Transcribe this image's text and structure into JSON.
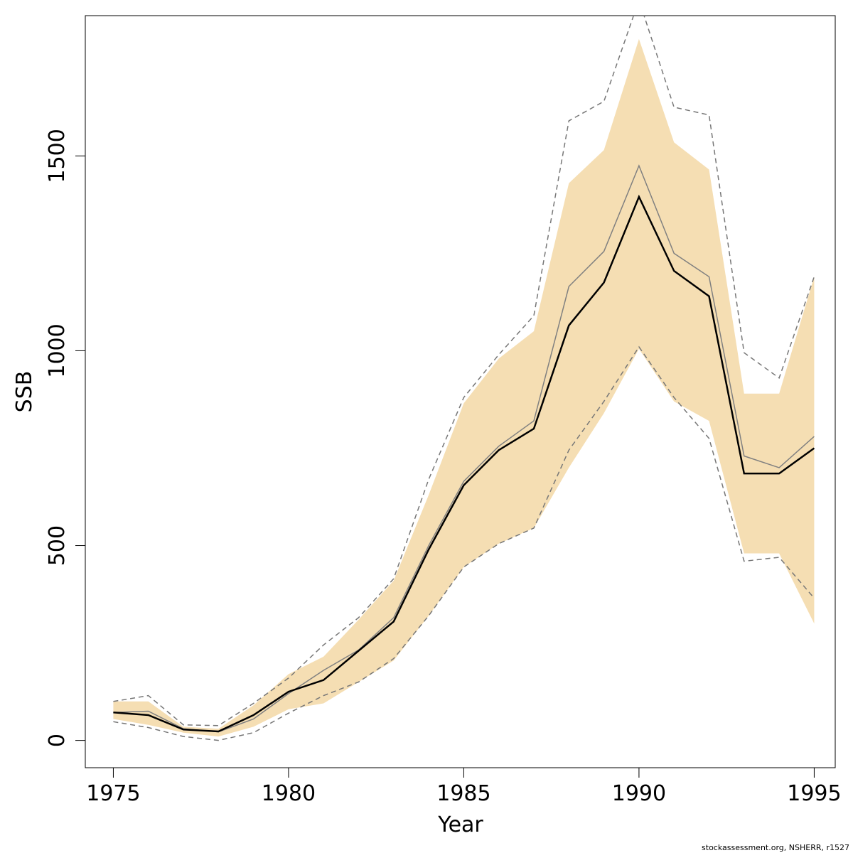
{
  "chart_data": {
    "type": "line",
    "xlabel": "Year",
    "ylabel": "SSB",
    "xlim": [
      1974.2,
      1995.6
    ],
    "ylim": [
      -70,
      1860
    ],
    "x_ticks": [
      1975,
      1980,
      1985,
      1990,
      1995
    ],
    "y_ticks": [
      0,
      500,
      1000,
      1500
    ],
    "x": [
      1975,
      1976,
      1977,
      1978,
      1979,
      1980,
      1981,
      1982,
      1983,
      1984,
      1985,
      1986,
      1987,
      1988,
      1989,
      1990,
      1991,
      1992,
      1993,
      1994,
      1995
    ],
    "series": [
      {
        "role": "band",
        "color": "#f5deb3",
        "lower": [
          55,
          40,
          20,
          10,
          35,
          80,
          95,
          150,
          205,
          320,
          445,
          505,
          545,
          700,
          840,
          1005,
          870,
          820,
          480,
          480,
          300
        ],
        "upper": [
          100,
          100,
          35,
          30,
          90,
          170,
          215,
          310,
          410,
          630,
          865,
          980,
          1050,
          1430,
          1515,
          1800,
          1535,
          1465,
          890,
          890,
          1190
        ]
      },
      {
        "role": "dashed-upper",
        "color": "#777777",
        "values": [
          100,
          115,
          40,
          38,
          95,
          160,
          245,
          315,
          415,
          670,
          880,
          990,
          1090,
          1590,
          1640,
          1900,
          1625,
          1605,
          995,
          930,
          1190
        ]
      },
      {
        "role": "dashed-lower",
        "color": "#777777",
        "values": [
          48,
          33,
          10,
          0,
          20,
          70,
          115,
          150,
          210,
          320,
          445,
          505,
          545,
          745,
          870,
          1010,
          880,
          775,
          460,
          470,
          365
        ]
      },
      {
        "role": "gray-line",
        "color": "#808080",
        "values": [
          72,
          75,
          30,
          22,
          55,
          120,
          180,
          232,
          315,
          500,
          665,
          755,
          820,
          1165,
          1255,
          1475,
          1250,
          1190,
          730,
          700,
          780
        ]
      },
      {
        "role": "main-line",
        "color": "#000000",
        "values": [
          72,
          65,
          28,
          23,
          65,
          125,
          155,
          230,
          305,
          490,
          655,
          745,
          800,
          1065,
          1175,
          1395,
          1205,
          1140,
          685,
          685,
          750
        ]
      }
    ]
  },
  "credit": "stockassessment.org, NSHERR, r1527"
}
